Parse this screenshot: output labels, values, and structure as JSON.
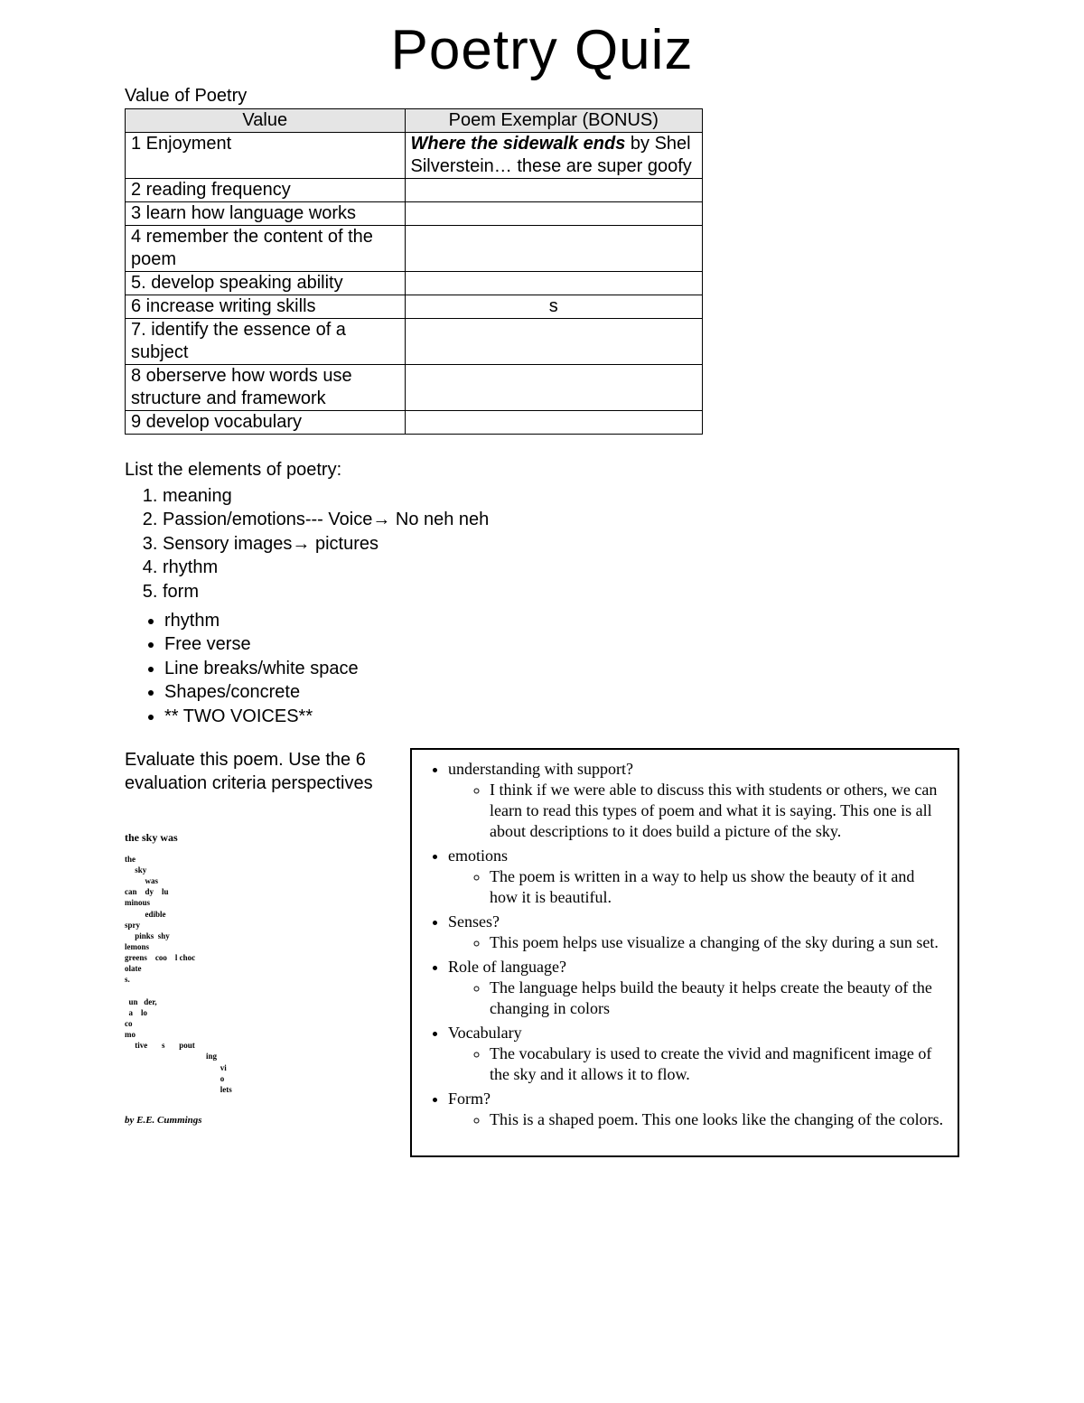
{
  "title": "Poetry Quiz",
  "table": {
    "caption": "Value of Poetry",
    "headers": [
      "Value",
      "Poem Exemplar (BONUS)"
    ],
    "header_bg": "#e5e5e5",
    "rows": [
      {
        "value": "1 Enjoyment",
        "exemplar_title": "Where the sidewalk ends",
        "exemplar_rest": " by Shel Silverstein… these are super goofy"
      },
      {
        "value": "2 reading frequency",
        "exemplar": ""
      },
      {
        "value": "3 learn how language works",
        "exemplar": ""
      },
      {
        "value": "4 remember the content of the poem",
        "exemplar": ""
      },
      {
        "value": "5. develop speaking ability",
        "exemplar": ""
      },
      {
        "value": "6 increase writing skills",
        "exemplar": "s",
        "centered": true
      },
      {
        "value": "7. identify the essence of a subject",
        "exemplar": ""
      },
      {
        "value": "8 oberserve how words use structure and framework",
        "exemplar": ""
      },
      {
        "value": "9 develop vocabulary",
        "exemplar": ""
      }
    ]
  },
  "elements": {
    "heading": "List the elements of poetry:",
    "items": [
      "meaning",
      "Passion/emotions--- Voice→ No neh neh",
      "Sensory images→ pictures",
      "rhythm",
      "form"
    ],
    "sub_items": [
      "rhythm",
      "Free verse",
      "Line breaks/white space",
      "Shapes/concrete",
      "** TWO VOICES**"
    ]
  },
  "evaluate": {
    "prompt": "Evaluate this poem.  Use the 6 evaluation criteria perspectives",
    "poem_title": "the sky was",
    "poem_body": "the\n     sky\n          was\ncan    dy    lu\nminous\n          edible\nspry\n     pinks  shy\nlemons\ngreens    coo    l choc\nolate\ns.\n\n  un   der,\n  a    lo\nco\nmo\n     tive       s       pout\n                                        ing\n                                               vi\n                                               o\n                                               lets",
    "poem_author": "by E.E. Cummings",
    "criteria": [
      {
        "label": "understanding with support?",
        "response": "I think if we were able to discuss this with students or others, we can learn to read this types of poem and what it is saying. This one is all about descriptions to it does build a picture of the sky."
      },
      {
        "label": "emotions",
        "response": "The poem is written in a way to help us show the beauty of it and how it is beautiful."
      },
      {
        "label": "Senses?",
        "response": "This poem helps use visualize a changing of the sky during a sun set."
      },
      {
        "label": "Role of language?",
        "response": "The language helps build the beauty it helps create the beauty of the changing in colors"
      },
      {
        "label": "Vocabulary",
        "response": "The vocabulary is used to create the vivid and magnificent image of the sky and it allows it to flow."
      },
      {
        "label": "Form?",
        "response": "This is a shaped poem. This one looks like the changing of the colors."
      }
    ]
  }
}
